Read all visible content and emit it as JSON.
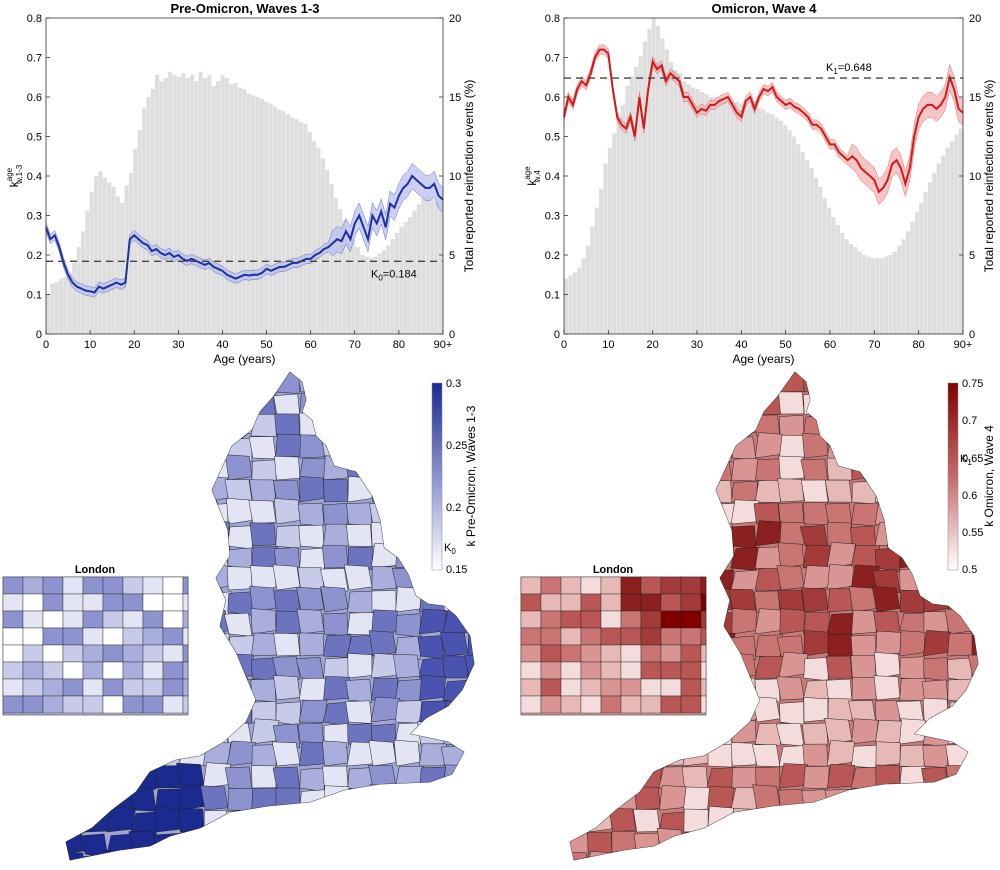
{
  "chart_data": [
    {
      "type": "line",
      "title": "Pre-Omicron, Waves 1-3",
      "xlabel": "Age (years)",
      "ylabel": "k",
      "ylabel_super": "age",
      "ylabel_sub": "w,1-3",
      "y2label": "Total reported reinfection events (%)",
      "xlim": [
        0,
        90
      ],
      "ylim": [
        0,
        0.8
      ],
      "y2lim": [
        0,
        20
      ],
      "xticks": [
        "0",
        "10",
        "20",
        "30",
        "40",
        "50",
        "60",
        "70",
        "80",
        "90+"
      ],
      "yticks": [
        "0",
        "0.1",
        "0.2",
        "0.3",
        "0.4",
        "0.5",
        "0.6",
        "0.7",
        "0.8"
      ],
      "y2ticks": [
        "0",
        "5",
        "10",
        "15",
        "20"
      ],
      "line_color": "#1f2f9e",
      "band_color": "#b9bff0",
      "reference": {
        "label": "K",
        "label_sub": "0",
        "label_value": "=0.184",
        "value": 0.184
      },
      "x": [
        0,
        1,
        2,
        3,
        4,
        5,
        6,
        7,
        8,
        9,
        10,
        11,
        12,
        13,
        14,
        15,
        16,
        17,
        18,
        19,
        20,
        21,
        22,
        23,
        24,
        25,
        26,
        27,
        28,
        29,
        30,
        31,
        32,
        33,
        34,
        35,
        36,
        37,
        38,
        39,
        40,
        41,
        42,
        43,
        44,
        45,
        46,
        47,
        48,
        49,
        50,
        51,
        52,
        53,
        54,
        55,
        56,
        57,
        58,
        59,
        60,
        61,
        62,
        63,
        64,
        65,
        66,
        67,
        68,
        69,
        70,
        71,
        72,
        73,
        74,
        75,
        76,
        77,
        78,
        79,
        80,
        81,
        82,
        83,
        84,
        85,
        86,
        87,
        88,
        89,
        90
      ],
      "y": [
        0.27,
        0.24,
        0.25,
        0.22,
        0.18,
        0.15,
        0.13,
        0.12,
        0.115,
        0.11,
        0.108,
        0.105,
        0.12,
        0.115,
        0.12,
        0.125,
        0.13,
        0.125,
        0.13,
        0.24,
        0.25,
        0.24,
        0.23,
        0.225,
        0.21,
        0.215,
        0.205,
        0.2,
        0.205,
        0.195,
        0.2,
        0.19,
        0.185,
        0.19,
        0.185,
        0.18,
        0.175,
        0.18,
        0.17,
        0.165,
        0.16,
        0.15,
        0.145,
        0.14,
        0.145,
        0.15,
        0.148,
        0.15,
        0.15,
        0.155,
        0.165,
        0.16,
        0.165,
        0.17,
        0.17,
        0.175,
        0.18,
        0.18,
        0.185,
        0.19,
        0.19,
        0.2,
        0.205,
        0.215,
        0.22,
        0.23,
        0.24,
        0.235,
        0.26,
        0.24,
        0.28,
        0.3,
        0.27,
        0.24,
        0.3,
        0.28,
        0.31,
        0.27,
        0.33,
        0.32,
        0.35,
        0.37,
        0.38,
        0.4,
        0.39,
        0.38,
        0.37,
        0.37,
        0.38,
        0.35,
        0.34
      ],
      "bars": [
        2.5,
        3.2,
        3.3,
        3.5,
        3.6,
        3.8,
        4.5,
        5.5,
        6.5,
        7.8,
        9.0,
        10.0,
        10.3,
        9.9,
        9.6,
        9.3,
        8.7,
        8.3,
        9.4,
        10.2,
        11.7,
        12.9,
        14.3,
        15.0,
        15.5,
        16.4,
        16.0,
        16.2,
        16.6,
        16.4,
        16.3,
        16.5,
        16.2,
        16.4,
        16.0,
        16.6,
        16.2,
        16.4,
        15.7,
        16.0,
        16.4,
        16.2,
        15.8,
        15.9,
        15.6,
        15.5,
        15.2,
        15.1,
        15.0,
        14.9,
        14.7,
        14.6,
        14.4,
        14.2,
        14.1,
        13.9,
        13.7,
        13.6,
        13.4,
        13.3,
        12.8,
        12.2,
        11.8,
        11.1,
        10.4,
        9.5,
        8.6,
        7.9,
        7.2,
        6.5,
        6.0,
        5.5,
        5.0,
        4.9,
        4.8,
        4.9,
        5.1,
        5.3,
        5.6,
        6.0,
        6.4,
        6.8,
        7.1,
        7.4,
        7.8,
        8.2,
        8.6,
        8.7,
        8.6,
        8.4,
        8.3
      ]
    },
    {
      "type": "line",
      "title": "Omicron, Wave 4",
      "xlabel": "Age (years)",
      "ylabel": "k",
      "ylabel_super": "age",
      "ylabel_sub": "w,4",
      "y2label": "Total reported reinfection events (%)",
      "xlim": [
        0,
        90
      ],
      "ylim": [
        0,
        0.8
      ],
      "y2lim": [
        0,
        20
      ],
      "xticks": [
        "0",
        "10",
        "20",
        "30",
        "40",
        "50",
        "60",
        "70",
        "80",
        "90+"
      ],
      "yticks": [
        "0",
        "0.1",
        "0.2",
        "0.3",
        "0.4",
        "0.5",
        "0.6",
        "0.7",
        "0.8"
      ],
      "y2ticks": [
        "0",
        "5",
        "10",
        "15",
        "20"
      ],
      "line_color": "#d11a1a",
      "band_color": "#f3b3b3",
      "reference": {
        "label": "K",
        "label_sub": "1",
        "label_value": "=0.648",
        "value": 0.648
      },
      "x": [
        0,
        1,
        2,
        3,
        4,
        5,
        6,
        7,
        8,
        9,
        10,
        11,
        12,
        13,
        14,
        15,
        16,
        17,
        18,
        19,
        20,
        21,
        22,
        23,
        24,
        25,
        26,
        27,
        28,
        29,
        30,
        31,
        32,
        33,
        34,
        35,
        36,
        37,
        38,
        39,
        40,
        41,
        42,
        43,
        44,
        45,
        46,
        47,
        48,
        49,
        50,
        51,
        52,
        53,
        54,
        55,
        56,
        57,
        58,
        59,
        60,
        61,
        62,
        63,
        64,
        65,
        66,
        67,
        68,
        69,
        70,
        71,
        72,
        73,
        74,
        75,
        76,
        77,
        78,
        79,
        80,
        81,
        82,
        83,
        84,
        85,
        86,
        87,
        88,
        89,
        90
      ],
      "y": [
        0.55,
        0.6,
        0.58,
        0.62,
        0.64,
        0.63,
        0.66,
        0.7,
        0.72,
        0.72,
        0.71,
        0.62,
        0.55,
        0.53,
        0.52,
        0.55,
        0.5,
        0.6,
        0.52,
        0.62,
        0.69,
        0.67,
        0.68,
        0.64,
        0.66,
        0.65,
        0.64,
        0.6,
        0.6,
        0.58,
        0.56,
        0.57,
        0.565,
        0.58,
        0.58,
        0.59,
        0.595,
        0.6,
        0.58,
        0.56,
        0.55,
        0.59,
        0.6,
        0.57,
        0.6,
        0.62,
        0.615,
        0.625,
        0.6,
        0.59,
        0.58,
        0.585,
        0.575,
        0.57,
        0.56,
        0.55,
        0.53,
        0.53,
        0.52,
        0.5,
        0.48,
        0.48,
        0.46,
        0.45,
        0.44,
        0.45,
        0.44,
        0.42,
        0.41,
        0.4,
        0.39,
        0.36,
        0.37,
        0.39,
        0.43,
        0.44,
        0.42,
        0.38,
        0.42,
        0.5,
        0.55,
        0.57,
        0.58,
        0.58,
        0.57,
        0.58,
        0.6,
        0.65,
        0.62,
        0.57,
        0.56
      ],
      "bars": [
        3.5,
        3.7,
        3.9,
        4.2,
        4.8,
        5.6,
        6.8,
        8.0,
        9.2,
        10.8,
        11.8,
        12.7,
        13.5,
        14.5,
        15.7,
        16.3,
        16.9,
        17.6,
        18.5,
        19.3,
        20.0,
        19.5,
        18.7,
        18.0,
        17.2,
        16.7,
        16.5,
        16.0,
        15.8,
        15.6,
        15.5,
        15.3,
        15.2,
        15.0,
        15.0,
        14.9,
        14.9,
        14.8,
        14.7,
        14.7,
        14.6,
        14.6,
        14.5,
        14.4,
        14.3,
        14.2,
        14.0,
        13.9,
        13.7,
        13.5,
        13.2,
        12.9,
        12.5,
        12.0,
        11.5,
        11.0,
        10.5,
        9.9,
        9.3,
        8.6,
        8.0,
        7.4,
        6.9,
        6.4,
        6.0,
        5.7,
        5.5,
        5.2,
        5.0,
        4.9,
        4.8,
        4.8,
        4.8,
        4.9,
        5.0,
        5.2,
        5.6,
        6.0,
        6.5,
        7.1,
        7.7,
        8.3,
        9.0,
        9.6,
        10.2,
        10.8,
        11.3,
        11.8,
        12.2,
        12.6,
        13.0
      ]
    }
  ],
  "maps": [
    {
      "colorbar_label": "k Pre-Omicron, Waves 1-3",
      "colorbar_symbol": "K",
      "colorbar_symbol_sub": "0",
      "colorbar_ticks": [
        "0.3",
        "0.25",
        "0.2",
        "0.15"
      ],
      "colorbar_top": "#1b2a8f",
      "colorbar_bottom": "#ffffff",
      "inset_title": "London"
    },
    {
      "colorbar_label": "k Omicron, Wave 4",
      "colorbar_symbol": "K",
      "colorbar_symbol_sub": "1",
      "colorbar_ticks": [
        "0.75",
        "0.7",
        "0.65",
        "0.6",
        "0.55",
        "0.5"
      ],
      "colorbar_top": "#800000",
      "colorbar_bottom": "#ffffff",
      "inset_title": "London"
    }
  ]
}
